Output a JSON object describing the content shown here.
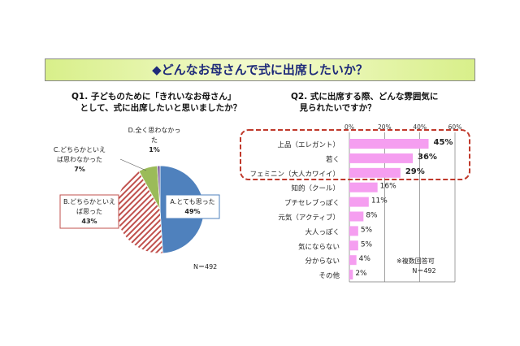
{
  "header": {
    "title": "◆どんなお母さんで式に出席したいか？"
  },
  "chart_data": [
    {
      "type": "pie",
      "title": "Q1. 子どものために「きれいなお母さん」\n　として、式に出席したいと思いましたか？",
      "categories": [
        "A.とても思った",
        "B.どちらかといえば思った",
        "C.どちらかといえば思わなかった",
        "D.全く思わなかった"
      ],
      "values": [
        49,
        43,
        7,
        1
      ],
      "labels": [
        "49%",
        "43%",
        "7%",
        "1%"
      ],
      "colors": [
        "#4f81bd",
        "#c0504d",
        "#9bbb59",
        "#8064a2"
      ],
      "note": "N＝492"
    },
    {
      "type": "bar",
      "orientation": "horizontal",
      "title": "Q2. 式に出席する際、どんな雰囲気に\n　見られたいですか？",
      "categories": [
        "上品（エレガント）",
        "若く",
        "フェミニン（大人カワイイ）",
        "知的（クール）",
        "プチセレブっぽく",
        "元気（アクティブ）",
        "大人っぽく",
        "気にならない",
        "分からない",
        "その他"
      ],
      "values": [
        45,
        36,
        29,
        16,
        11,
        8,
        5,
        5,
        4,
        2
      ],
      "labels": [
        "45%",
        "36%",
        "29%",
        "16%",
        "11%",
        "8%",
        "5%",
        "5%",
        "4%",
        "2%"
      ],
      "xticks": [
        "0%",
        "20%",
        "40%",
        "60%"
      ],
      "xlim": [
        0,
        60
      ],
      "grid": true,
      "bar_color": "#f59ef0",
      "highlight_color": "#c0392b",
      "notes": [
        "※複数回答可",
        "N＝492"
      ]
    }
  ]
}
